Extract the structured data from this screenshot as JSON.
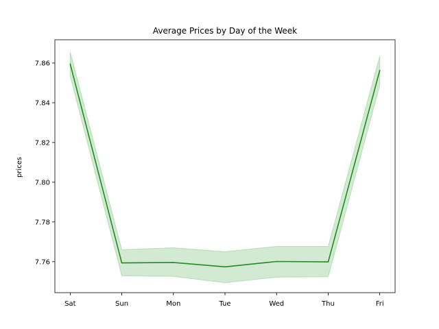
{
  "chart_data": {
    "type": "line",
    "title": "Average Prices by Day of the Week",
    "xlabel": "",
    "ylabel": "prices",
    "categories": [
      "Sat",
      "Sun",
      "Mon",
      "Tue",
      "Wed",
      "Thu",
      "Fri"
    ],
    "series": [
      {
        "values": [
          7.8595,
          7.7594,
          7.7596,
          7.7574,
          7.7601,
          7.7599,
          7.8563
        ],
        "lower": [
          7.8535,
          7.7529,
          7.7526,
          7.7494,
          7.7522,
          7.7524,
          7.8488
        ],
        "upper": [
          7.8656,
          7.766,
          7.767,
          7.765,
          7.7677,
          7.7677,
          7.8635
        ],
        "color": "#228b22",
        "band_color": "#2ca02c"
      }
    ],
    "yticks": [
      7.76,
      7.78,
      7.8,
      7.82,
      7.84,
      7.86
    ],
    "ylim": [
      7.7444,
      7.8717
    ],
    "grid": false,
    "legend": "none"
  }
}
